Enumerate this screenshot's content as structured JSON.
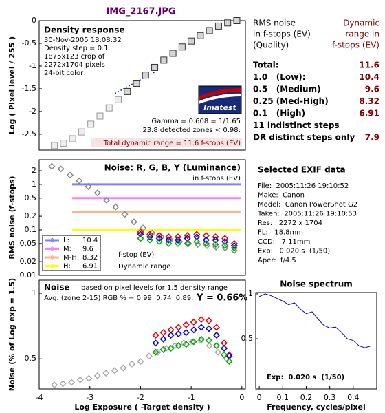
{
  "title": "IMG_2167.JPG",
  "chart_data": [
    {
      "type": "scatter",
      "marker": "square",
      "title": "Density response",
      "notes": [
        "30-Nov-2005 18:08:32",
        "Density step = 0.1",
        "1875x123 crop of",
        "2272x1704 pixels",
        "24-bit color"
      ],
      "ylabel": "Log ( Pixel level / 255 )",
      "xlim": [
        -4,
        0.07
      ],
      "ylim": [
        -2.85,
        0
      ],
      "yticks": [
        0,
        -0.5,
        -1,
        -1.5,
        -2,
        -2.5
      ],
      "series": [
        {
          "color": "#999999",
          "fill": "#eeeeee",
          "x": [
            -3.7,
            -3.52,
            -3.34,
            -3.16,
            -2.98,
            -2.8,
            -2.62,
            -2.44
          ],
          "values": [
            -2.75,
            -2.7,
            -2.6,
            -2.45,
            -2.28,
            -2.1,
            -1.92,
            -1.74
          ]
        },
        {
          "color": "#333333",
          "fill": "#d4d4d4",
          "x": [
            -2.26,
            -2.08,
            -1.9,
            -1.72,
            -1.54,
            -1.36,
            -1.18,
            -1.0,
            -0.82,
            -0.64,
            -0.46,
            -0.28,
            -0.1
          ],
          "values": [
            -1.56,
            -1.38,
            -1.2,
            -1.03,
            -0.87,
            -0.72,
            -0.58,
            -0.45,
            -0.33,
            -0.22,
            -0.12,
            -0.05,
            0
          ]
        }
      ],
      "fit_line": {
        "color": "#0000ff",
        "x": [
          -2.5,
          -2.3,
          -2.1,
          -1.9,
          -1.7
        ],
        "values": [
          -1.6,
          -1.48,
          -1.36,
          -1.24,
          -1.12
        ]
      },
      "annotations": [
        "Gamma = 0.608 = 1/1.65",
        "23.8 detected zones < 0.98:"
      ],
      "total_label": "Total dynamic range = 11.6 f-stops (EV)",
      "logo": "Imatest"
    },
    {
      "type": "scatter",
      "marker": "diamond",
      "title": "Noise: R, G, B, Y (Luminance)",
      "subtitle": "in f-stops (EV)",
      "ylabel": "RMS noise (f-stops)",
      "log_y": true,
      "xlim": [
        -4,
        0.07
      ],
      "ylim": [
        0.01,
        3.5
      ],
      "yticks": [
        2,
        1,
        0.5,
        0.2,
        0.1,
        0.05,
        0.02,
        0.01
      ],
      "thresholds": [
        {
          "name": "L:",
          "value": 1,
          "range": 10.4,
          "color": "#8080ff"
        },
        {
          "name": "M:",
          "value": 0.5,
          "range": 9.6,
          "color": "#ff80ff"
        },
        {
          "name": "M-H:",
          "value": 0.25,
          "range": 8.32,
          "color": "#ffb48c"
        },
        {
          "name": "H:",
          "value": 0.1,
          "range": 6.91,
          "color": "#ffff00"
        }
      ],
      "legend_notes": [
        "f-stop (EV)",
        "Dynamic range"
      ],
      "series": [
        {
          "color": "#888888",
          "x": [
            -3.75,
            -3.57,
            -3.39,
            -3.21,
            -3.03,
            -2.85,
            -2.67,
            -2.49,
            -2.31,
            -2.13,
            -1.95,
            -1.77,
            -1.59,
            -1.41,
            -1.23,
            -1.05,
            -0.87,
            -0.69,
            -0.51,
            -0.33,
            -0.15
          ],
          "values": [
            2.5,
            2.2,
            1.6,
            1.2,
            0.9,
            0.65,
            0.45,
            0.32,
            0.22,
            0.15,
            0.11,
            0.085,
            0.07,
            0.06,
            0.055,
            0.05,
            0.048,
            0.045,
            0.042,
            0.04,
            0.035
          ]
        },
        {
          "color": "#ee0000",
          "x": [
            -2.0,
            -1.815,
            -1.63,
            -1.445,
            -1.26,
            -1.075,
            -0.89,
            -0.705,
            -0.52,
            -0.335,
            -0.15
          ],
          "values": [
            0.09,
            0.08,
            0.075,
            0.07,
            0.07,
            0.075,
            0.08,
            0.075,
            0.07,
            0.065,
            0.05
          ]
        },
        {
          "color": "#0000ee",
          "x": [
            -2.0,
            -1.815,
            -1.63,
            -1.445,
            -1.26,
            -1.075,
            -0.89,
            -0.705,
            -0.52,
            -0.335,
            -0.15
          ],
          "values": [
            0.08,
            0.07,
            0.065,
            0.06,
            0.06,
            0.065,
            0.07,
            0.06,
            0.06,
            0.055,
            0.045
          ]
        },
        {
          "color": "#00aa00",
          "x": [
            -2.0,
            -1.815,
            -1.63,
            -1.445,
            -1.26,
            -1.075,
            -0.89,
            -0.705,
            -0.52,
            -0.335,
            -0.15
          ],
          "values": [
            0.065,
            0.06,
            0.055,
            0.05,
            0.05,
            0.05,
            0.055,
            0.05,
            0.048,
            0.045,
            0.04
          ]
        }
      ]
    },
    {
      "type": "scatter",
      "marker": "diamond",
      "title": "Noise",
      "subtitle": "based on pixel levels for 1.5 density range",
      "notes": [
        "Avg. (zone 2-15) RGB % = 0.99  0.74  0.89;",
        "Y = 0.66%"
      ],
      "ylabel": "Noise (% of Log exp = 1.5)",
      "xlabel": "Log Exposure ( -Target density )",
      "xlim": [
        -4,
        0.07
      ],
      "ylim": [
        0.27,
        1.1
      ],
      "xticks": [
        -4,
        -3,
        -2,
        -1,
        0
      ],
      "yticks": [
        1,
        0.5
      ],
      "series": [
        {
          "color": "#aaaaaa",
          "x": [
            -3.7,
            -3.53,
            -3.36,
            -3.19,
            -3.02,
            -2.85,
            -2.68,
            -2.51,
            -2.34,
            -2.17,
            -2.0,
            -1.83,
            -1.66,
            -1.49,
            -1.32,
            -1.15,
            -0.98,
            -0.81,
            -0.64,
            -0.47,
            -0.3
          ],
          "values": [
            0.3,
            0.31,
            0.32,
            0.34,
            0.35,
            0.37,
            0.39,
            0.41,
            0.43,
            0.46,
            0.48,
            0.52,
            0.55,
            0.58,
            0.6,
            0.62,
            0.63,
            0.64,
            0.6,
            0.55,
            0.5
          ]
        },
        {
          "color": "#ee0000",
          "x": [
            -1.7,
            -1.55,
            -1.4,
            -1.25,
            -1.1,
            -0.95,
            -0.8,
            -0.65,
            -0.5,
            -0.35,
            -0.25
          ],
          "values": [
            0.68,
            0.7,
            0.72,
            0.74,
            0.76,
            0.78,
            0.8,
            0.79,
            0.74,
            0.62,
            0.53
          ]
        },
        {
          "color": "#0000ee",
          "x": [
            -1.7,
            -1.55,
            -1.4,
            -1.25,
            -1.1,
            -0.95,
            -0.8,
            -0.65,
            -0.5,
            -0.35,
            -0.25
          ],
          "values": [
            0.62,
            0.65,
            0.68,
            0.69,
            0.7,
            0.72,
            0.74,
            0.73,
            0.68,
            0.58,
            0.52
          ]
        },
        {
          "color": "#00aa00",
          "x": [
            -1.7,
            -1.55,
            -1.4,
            -1.25,
            -1.1,
            -0.95,
            -0.8,
            -0.65,
            -0.5,
            -0.35,
            -0.25
          ],
          "values": [
            0.55,
            0.57,
            0.58,
            0.6,
            0.61,
            0.63,
            0.65,
            0.64,
            0.6,
            0.53,
            0.48
          ]
        }
      ]
    },
    {
      "type": "line",
      "title": "Noise spectrum",
      "xlabel": "Frequency, cycles/pixel",
      "note": "Exp:  0.020 s  (1/50)",
      "xlim": [
        -0.015,
        0.5
      ],
      "ylim": [
        -0.06,
        1.015
      ],
      "xticks": [
        0,
        0.1,
        0.2,
        0.3,
        0.4
      ],
      "yticks": [
        1,
        0.5
      ],
      "series": [
        {
          "color": "#0000cc",
          "x": [
            0,
            0.025,
            0.05,
            0.075,
            0.1,
            0.125,
            0.15,
            0.175,
            0.2,
            0.225,
            0.25,
            0.275,
            0.3,
            0.325,
            0.35,
            0.375,
            0.4,
            0.425,
            0.45,
            0.475
          ],
          "values": [
            0.97,
            1.0,
            0.98,
            0.95,
            0.92,
            0.88,
            0.9,
            0.83,
            0.78,
            0.8,
            0.72,
            0.65,
            0.62,
            0.63,
            0.57,
            0.5,
            0.48,
            0.42,
            0.4,
            0.42
          ]
        }
      ]
    }
  ],
  "summary": {
    "header_left": [
      "RMS noise",
      "in f-stops (EV)",
      "(Quality)"
    ],
    "header_right": [
      "Dynamic",
      "range in",
      "f-stops (EV)"
    ],
    "rows": [
      {
        "label": "Total:",
        "value": 11.6
      },
      {
        "label": "1.0   (Low):",
        "value": 10.4
      },
      {
        "label": "0.5   (Medium)",
        "value": 9.6
      },
      {
        "label": "0.25 (Med-High)",
        "value": 8.32
      },
      {
        "label": "0.1   (High)",
        "value": 6.91
      },
      {
        "label": "11 indistinct steps"
      },
      {
        "label": "DR distinct steps only",
        "value": 7.9
      }
    ]
  },
  "exif": {
    "title": "Selected EXIF data",
    "lines": [
      "File:  2005:11:26 19:10:52",
      "Make:  Canon",
      "Model:  Canon PowerShot G2",
      "Taken:  2005:11:26 19:10:53",
      "Res:   2272 x 1704",
      "FL:   18.8mm",
      "CCD:   7.11mm",
      "Exp:   0.020 s  (1/50)",
      "Aper:  f/4.5"
    ]
  }
}
